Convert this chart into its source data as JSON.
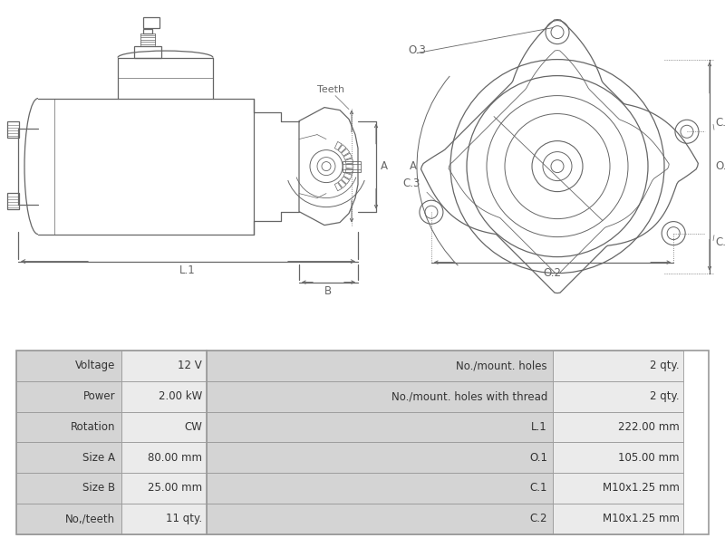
{
  "bg_color": "#ffffff",
  "border_color": "#999999",
  "table_bg_label": "#d4d4d4",
  "table_bg_value": "#ebebeb",
  "table_text_color": "#333333",
  "lc": "#666666",
  "table_rows": [
    [
      "Voltage",
      "12 V",
      "No./mount. holes",
      "2 qty."
    ],
    [
      "Power",
      "2.00 kW",
      "No./mount. holes with thread",
      "2 qty."
    ],
    [
      "Rotation",
      "CW",
      "L.1",
      "222.00 mm"
    ],
    [
      "Size A",
      "80.00 mm",
      "O.1",
      "105.00 mm"
    ],
    [
      "Size B",
      "25.00 mm",
      "C.1",
      "M10x1.25 mm"
    ],
    [
      "No,/teeth",
      "11 qty.",
      "C.2",
      "M10x1.25 mm"
    ]
  ],
  "font_size_table": 8.5
}
